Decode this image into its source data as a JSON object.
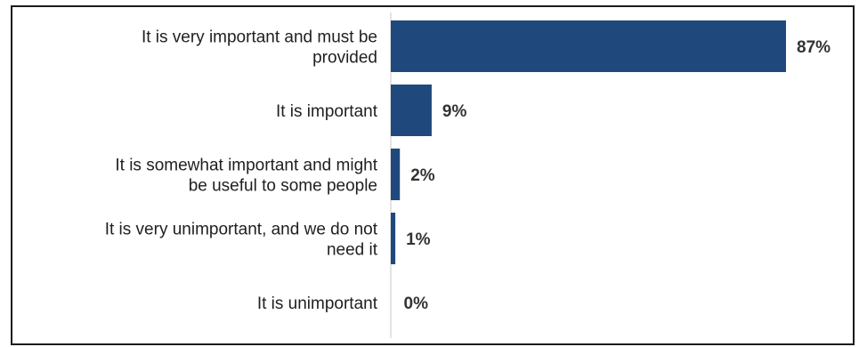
{
  "chart_data": {
    "type": "bar",
    "orientation": "horizontal",
    "categories": [
      [
        "It is very important and must be",
        "provided"
      ],
      [
        "It is important"
      ],
      [
        "It is somewhat important and might",
        "be useful to some people"
      ],
      [
        "It is very unimportant, and we do not",
        "need it"
      ],
      [
        "It is unimportant"
      ]
    ],
    "values": [
      87,
      9,
      2,
      1,
      0
    ],
    "value_labels": [
      "87%",
      "9%",
      "2%",
      "1%",
      "0%"
    ],
    "xlim": [
      0,
      87
    ],
    "grid": false,
    "legend": "none",
    "bar_color": "#1f497d"
  }
}
